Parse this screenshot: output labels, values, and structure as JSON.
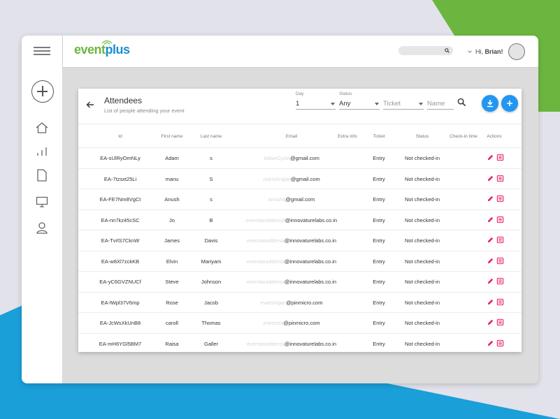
{
  "app": {
    "logo_a": "event",
    "logo_b": "plus"
  },
  "colors": {
    "brand_green": "#6cb640",
    "brand_blue": "#1a8fd0",
    "fab_blue": "#2196f3",
    "action_pink": "#e91e63"
  },
  "sidebar": {
    "icons": [
      "menu-icon",
      "add-circle-icon",
      "home-icon",
      "bar-chart-icon",
      "document-icon",
      "monitor-icon",
      "user-icon"
    ]
  },
  "header": {
    "greeting": "Hi,",
    "user_name": "Brian!"
  },
  "page": {
    "title": "Attendees",
    "subtitle": "List of people attending your event"
  },
  "filters": {
    "day_label": "Day",
    "day_value": "1",
    "status_label": "Status",
    "status_value": "Any",
    "ticket_placeholder": "Ticket",
    "name_placeholder": "Name"
  },
  "table": {
    "headers": [
      "Id",
      "First name",
      "Last name",
      "Email",
      "Extra info",
      "Ticket",
      "Status",
      "Check-in time",
      "Actions"
    ],
    "rows": [
      {
        "id": "EA-sUlRyOmNLy",
        "first": "Adam",
        "last": "s",
        "email_blur": "AdamCyzw",
        "email_domain": "@gmail.com",
        "extra": "",
        "ticket": "Entry",
        "status": "Not checked-in",
        "checkin": ""
      },
      {
        "id": "EA-7tzsxt25Li",
        "first": "manu",
        "last": "S",
        "email_blur": "manuhrajan",
        "email_domain": "@gmail.com",
        "extra": "",
        "ticket": "Entry",
        "status": "Not checked-in",
        "checkin": ""
      },
      {
        "id": "EA-FE7Nm8VgCt",
        "first": "Anush",
        "last": "s",
        "email_blur": "anushq",
        "email_domain": "@gmail.com",
        "extra": "",
        "ticket": "Entry",
        "status": "Not checked-in",
        "checkin": ""
      },
      {
        "id": "EA-nn7kz45cSC",
        "first": "Jo",
        "last": "B",
        "email_blur": "everstaraddressf",
        "email_domain": "@innovaturelabs.co.in",
        "extra": "",
        "ticket": "Entry",
        "status": "Not checked-in",
        "checkin": ""
      },
      {
        "id": "EA-TvrlS7CknW",
        "first": "James",
        "last": "Davis",
        "email_blur": "everstaraddress",
        "email_domain": "@innovaturelabs.co.in",
        "extra": "",
        "ticket": "Entry",
        "status": "Not checked-in",
        "checkin": ""
      },
      {
        "id": "EA-w8Xl7zckKB",
        "first": "Elvin",
        "last": "Mariyam",
        "email_blur": "everstaraddress",
        "email_domain": "@innovaturelabs.co.in",
        "extra": "",
        "ticket": "Entry",
        "status": "Not checked-in",
        "checkin": ""
      },
      {
        "id": "EA-yC6GVZNUCf",
        "first": "Steve",
        "last": "Johnson",
        "email_blur": "everstaraddress",
        "email_domain": "@innovaturelabs.co.in",
        "extra": "",
        "ticket": "Entry",
        "status": "Not checked-in",
        "checkin": ""
      },
      {
        "id": "EA-lWpl37V6mp",
        "first": "Rose",
        "last": "Jacob",
        "email_blur": "evarshajan",
        "email_domain": "@pinmicro.com",
        "extra": "",
        "ticket": "Entry",
        "status": "Not checked-in",
        "checkin": ""
      },
      {
        "id": "EA-JcWsXkUnB8",
        "first": "caroll",
        "last": "Thomas",
        "email_blur": "everesta",
        "email_domain": "@pinmicro.com",
        "extra": "",
        "ticket": "Entry",
        "status": "Not checked-in",
        "checkin": ""
      },
      {
        "id": "EA-mH6YGl5BM7",
        "first": "Raisa",
        "last": "Galler",
        "email_blur": "everstaraddress",
        "email_domain": "@innovaturelabs.co.in",
        "extra": "",
        "ticket": "Entry",
        "status": "Not checked-in",
        "checkin": ""
      }
    ]
  }
}
